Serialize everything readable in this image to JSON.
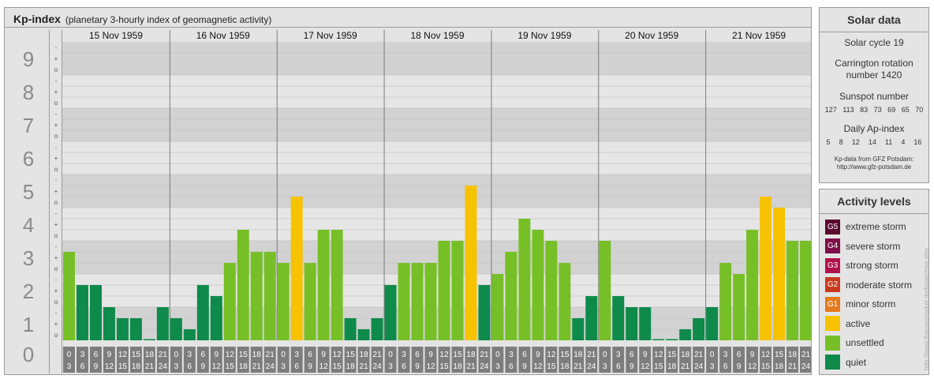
{
  "header": {
    "title": "Kp-index",
    "subtitle": "(planetary 3-hourly index of geomagnetic activity)"
  },
  "colors": {
    "quiet": "#0e8a4a",
    "unsettled": "#77bf26",
    "active": "#f7c200",
    "G1": "#e47a1c",
    "G2": "#c83a1e",
    "G3": "#b0124a",
    "G4": "#7c0e48",
    "G5": "#5a0a2e"
  },
  "chart_data": {
    "type": "bar",
    "ylim": [
      0,
      9
    ],
    "y_tick_labels": [
      "0",
      "1",
      "2",
      "3",
      "4",
      "5",
      "6",
      "7",
      "8",
      "9"
    ],
    "minor_tick_labels": [
      "-",
      "o",
      "+"
    ],
    "days": [
      "15 Nov 1959",
      "16 Nov 1959",
      "17 Nov 1959",
      "18 Nov 1959",
      "19 Nov 1959",
      "20 Nov 1959",
      "21 Nov 1959"
    ],
    "interval_start_labels": [
      "0",
      "3",
      "6",
      "9",
      "12",
      "15",
      "18",
      "21"
    ],
    "interval_end_labels": [
      "3",
      "6",
      "9",
      "12",
      "15",
      "18",
      "21",
      "24"
    ],
    "values": [
      [
        2.667,
        1.667,
        1.667,
        1.0,
        0.667,
        0.667,
        0.0,
        1.0
      ],
      [
        0.667,
        0.333,
        1.667,
        1.333,
        2.333,
        3.333,
        2.667,
        2.667
      ],
      [
        2.333,
        4.333,
        2.333,
        3.333,
        3.333,
        0.667,
        0.333,
        0.667
      ],
      [
        1.667,
        2.333,
        2.333,
        2.333,
        3.0,
        3.0,
        4.667,
        1.667
      ],
      [
        2.0,
        2.667,
        3.667,
        3.333,
        3.0,
        2.333,
        0.667,
        1.333
      ],
      [
        3.0,
        1.333,
        1.0,
        1.0,
        0.0,
        0.0,
        0.333,
        0.667
      ],
      [
        1.0,
        2.333,
        2.0,
        3.333,
        4.333,
        4.0,
        3.0,
        3.0
      ]
    ]
  },
  "solar": {
    "heading": "Solar data",
    "cycle": "Solar cycle 19",
    "carrington_line1": "Carrington rotation",
    "carrington_line2": "number 1420",
    "sunspot_label": "Sunspot number",
    "sunspot_values": [
      "127",
      "113",
      "83",
      "73",
      "69",
      "65",
      "70"
    ],
    "ap_label": "Daily Ap-index",
    "ap_values": [
      "5",
      "8",
      "12",
      "14",
      "11",
      "4",
      "16"
    ],
    "credit_line1": "Kp-data from GFZ Potsdam:",
    "credit_line2": "http://www.gfz-potsdam.de"
  },
  "legend": {
    "heading": "Activity levels",
    "items": [
      {
        "code": "G5",
        "label": "extreme storm",
        "color": "#5a0a2e"
      },
      {
        "code": "G4",
        "label": "severe storm",
        "color": "#7c0e48"
      },
      {
        "code": "G3",
        "label": "strong storm",
        "color": "#b0124a"
      },
      {
        "code": "G2",
        "label": "moderate storm",
        "color": "#c83a1e"
      },
      {
        "code": "G1",
        "label": "minor storm",
        "color": "#e47a1c"
      },
      {
        "code": "",
        "label": "active",
        "color": "#f7c200"
      },
      {
        "code": "",
        "label": "unsettled",
        "color": "#77bf26"
      },
      {
        "code": "",
        "label": "quiet",
        "color": "#0e8a4a"
      }
    ]
  },
  "watermark": "http://www.theusesrocket.de/kp/archive.php"
}
